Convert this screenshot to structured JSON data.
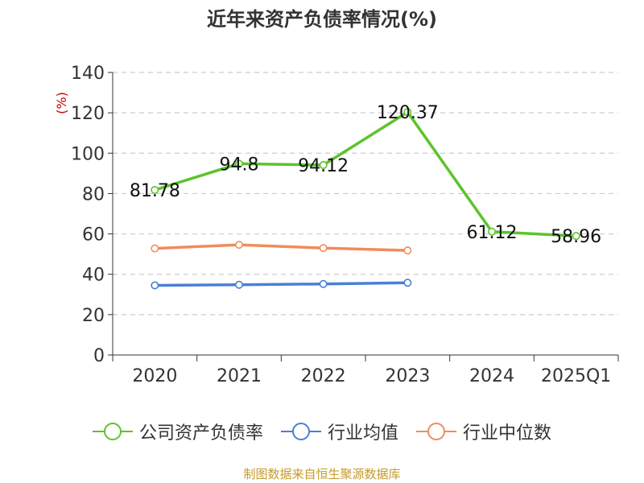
{
  "footer": "制图数据来自恒生聚源数据库",
  "colors": {
    "axis": "#333333",
    "grid": "#cccccc",
    "ylabel": "#c00000"
  },
  "chart_data": {
    "type": "line",
    "title": "近年来资产负债率情况(%)",
    "xlabel": "",
    "ylabel": "(%)",
    "categories": [
      "2020",
      "2021",
      "2022",
      "2023",
      "2024",
      "2025Q1"
    ],
    "ylim": [
      0,
      140
    ],
    "yticks": [
      0,
      20,
      40,
      60,
      80,
      100,
      120,
      140
    ],
    "grid": true,
    "legend_position": "bottom",
    "series": [
      {
        "name": "公司资产负债率",
        "color": "#5cc42a",
        "values": [
          81.78,
          94.8,
          94.12,
          120.37,
          61.12,
          58.96
        ],
        "labels": [
          "81.78",
          "94.8",
          "94.12",
          "120.37",
          "61.12",
          "58.96"
        ],
        "show_labels": true
      },
      {
        "name": "行业均值",
        "color": "#4a7fd6",
        "values": [
          34.5,
          34.8,
          35.2,
          35.8,
          null,
          null
        ],
        "show_labels": false
      },
      {
        "name": "行业中位数",
        "color": "#f08c5a",
        "values": [
          52.8,
          54.6,
          53.0,
          51.8,
          null,
          null
        ],
        "show_labels": false
      }
    ]
  }
}
